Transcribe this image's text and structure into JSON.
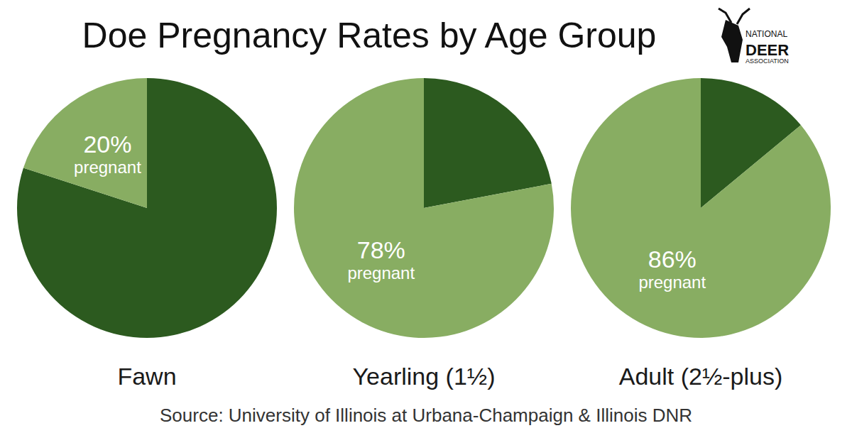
{
  "title": "Doe Pregnancy Rates by Age Group",
  "logo": [
    "NATIONAL",
    "DEER",
    "ASSOCIATION"
  ],
  "source": "Source: University of Illinois at Urbana-Champaign & Illinois DNR",
  "chart_data": [
    {
      "type": "pie",
      "title": "Fawn",
      "categories": [
        null,
        "pregnant"
      ],
      "values": [
        80,
        20
      ],
      "value_labels": [
        null,
        "20%"
      ],
      "colors": [
        "#2c5a1f",
        "#88ad62"
      ],
      "data_labels": true
    },
    {
      "type": "pie",
      "title": "Yearling (1½)",
      "categories": [
        null,
        "pregnant"
      ],
      "values": [
        22,
        78
      ],
      "value_labels": [
        null,
        "78%"
      ],
      "colors": [
        "#2c5a1f",
        "#88ad62"
      ],
      "data_labels": true
    },
    {
      "type": "pie",
      "title": "Adult (2½-plus)",
      "categories": [
        null,
        "pregnant"
      ],
      "values": [
        14,
        86
      ],
      "value_labels": [
        null,
        "86%"
      ],
      "colors": [
        "#2c5a1f",
        "#88ad62"
      ],
      "data_labels": true
    }
  ]
}
